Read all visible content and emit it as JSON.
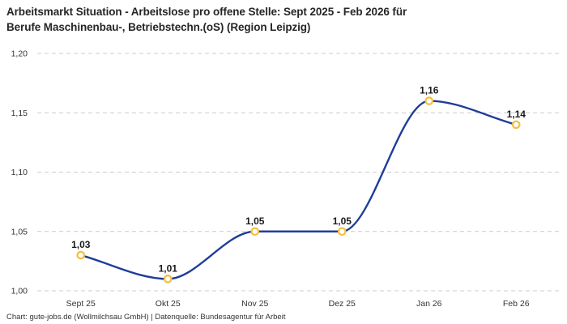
{
  "header": {
    "title_line1": "Arbeitsmarkt Situation - Arbeitslose pro offene Stelle: Sept 2025 - Feb 2026 für",
    "title_line2": "Berufe Maschinenbau-, Betriebstechn.(oS) (Region Leipzig)"
  },
  "footer": {
    "attribution": "Chart: gute-jobs.de (Wollmilchsau GmbH) | Datenquelle: Bundesagentur für Arbeit"
  },
  "chart_data": {
    "type": "line",
    "title": "Arbeitsmarkt Situation - Arbeitslose pro offene Stelle: Sept 2025 - Feb 2026 für Berufe Maschinenbau-, Betriebstechn.(oS) (Region Leipzig)",
    "categories": [
      "Sept 25",
      "Okt 25",
      "Nov 25",
      "Dez 25",
      "Jan 26",
      "Feb 26"
    ],
    "series": [
      {
        "name": "Arbeitslose pro offene Stelle",
        "values": [
          1.03,
          1.01,
          1.05,
          1.05,
          1.16,
          1.14
        ],
        "point_labels": [
          "1,03",
          "1,01",
          "1,05",
          "1,05",
          "1,16",
          "1,14"
        ]
      }
    ],
    "xlabel": "",
    "ylabel": "",
    "ylim": [
      1.0,
      1.2
    ],
    "y_ticks": {
      "values": [
        1.0,
        1.05,
        1.1,
        1.15,
        1.2
      ],
      "labels": [
        "1,00",
        "1,05",
        "1,10",
        "1,15",
        "1,20"
      ]
    },
    "grid": "horizontal-dashed",
    "legend": "none",
    "curve": "smooth-monotone",
    "colors": {
      "line": "#1F3D99",
      "marker_fill": "#FFFFFF",
      "marker_stroke": "#F6BE3C",
      "grid": "#CCCCCC",
      "title": "#262626",
      "axis_labels": "#333333",
      "point_labels": "#1A1A1A",
      "background": "#FFFFFF"
    }
  }
}
